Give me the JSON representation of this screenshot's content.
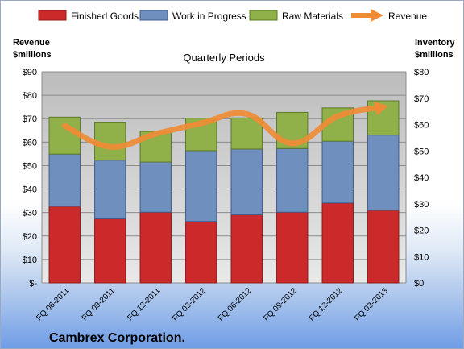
{
  "chart_data": {
    "type": "bar",
    "stacked": true,
    "title": "Quarterly Periods",
    "company": "Cambrex Corporation.",
    "left_axis_title": [
      "Revenue",
      "$millions"
    ],
    "right_axis_title": [
      "Inventory",
      "$millions"
    ],
    "categories": [
      "FQ 06-2011",
      "FQ 09-2011",
      "FQ 12-2011",
      "FQ 03-2012",
      "FQ 06-2012",
      "FQ 09-2012",
      "FQ 12-2012",
      "FQ 03-2013"
    ],
    "left_ylim": [
      0,
      90
    ],
    "left_ticks": [
      0,
      10,
      20,
      30,
      40,
      50,
      60,
      70,
      80,
      90
    ],
    "left_tick_labels": [
      "$-",
      "$10",
      "$20",
      "$30",
      "$40",
      "$50",
      "$60",
      "$70",
      "$80",
      "$90"
    ],
    "right_ylim": [
      0,
      80
    ],
    "right_ticks": [
      0,
      10,
      20,
      30,
      40,
      50,
      60,
      70,
      80
    ],
    "right_tick_labels": [
      "$0",
      "$10",
      "$20",
      "$30",
      "$40",
      "$50",
      "$60",
      "$70",
      "$80"
    ],
    "series": [
      {
        "name": "Finished Goods",
        "axis": "right",
        "color": "#cc2a2a",
        "values": [
          29,
          24.3,
          26.8,
          23.3,
          25.8,
          26.8,
          30.3,
          27.5
        ]
      },
      {
        "name": "Work in Progress",
        "axis": "right",
        "color": "#6f8fbf",
        "values": [
          19.8,
          22.2,
          19,
          26.8,
          24.9,
          24.1,
          23.4,
          28.5
        ]
      },
      {
        "name": "Raw Materials",
        "axis": "right",
        "color": "#90b04a",
        "values": [
          14,
          14.4,
          11.6,
          12.3,
          11.8,
          13.7,
          12.6,
          13
        ]
      },
      {
        "name": "Revenue",
        "axis": "left",
        "type": "line",
        "color": "#ef8b35",
        "values": [
          67,
          58,
          63.5,
          68,
          72,
          59.5,
          71,
          75
        ]
      }
    ],
    "grid": true,
    "legend": "top"
  }
}
